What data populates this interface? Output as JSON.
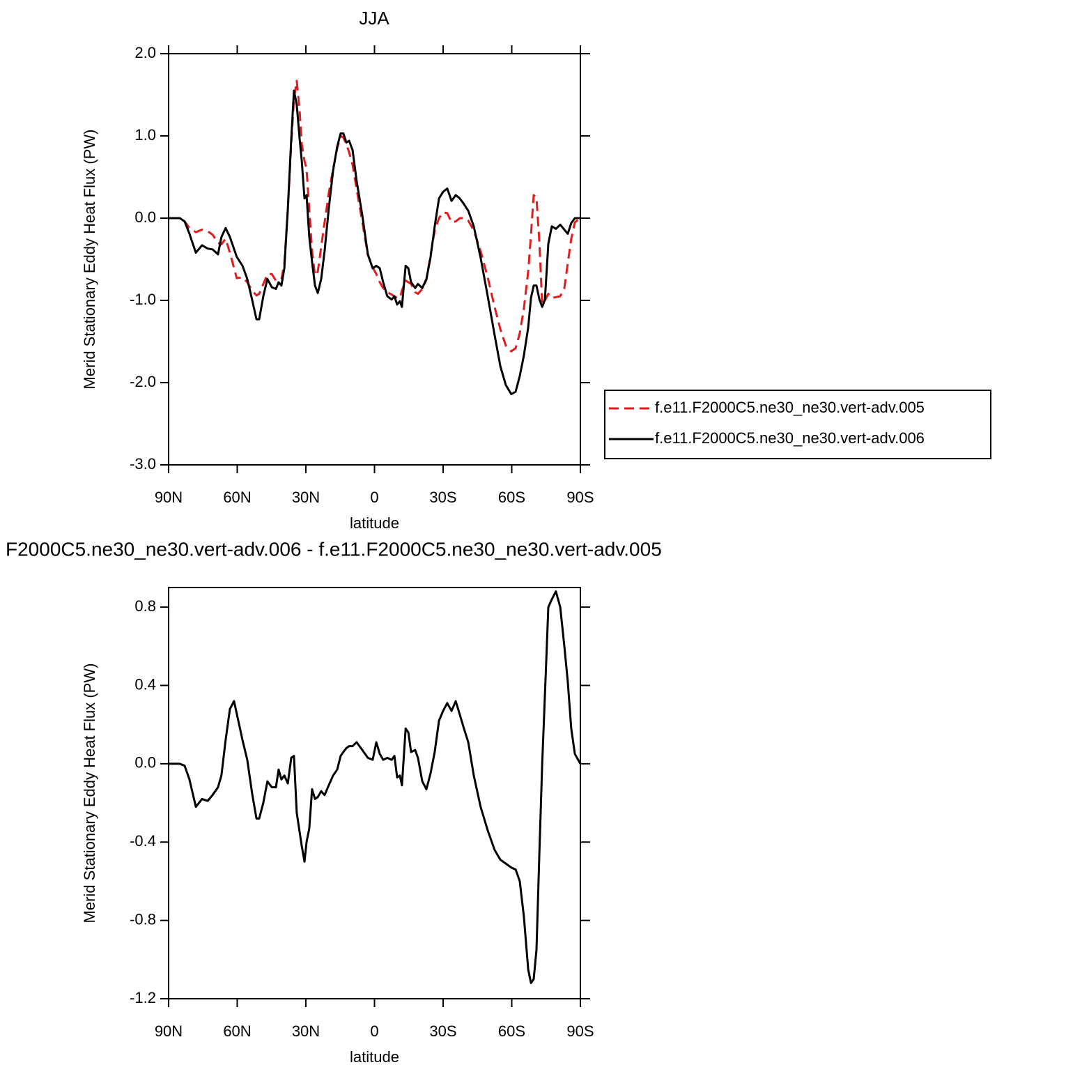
{
  "chart_data": [
    {
      "type": "line",
      "title": "JJA",
      "xlabel": "latitude",
      "ylabel": "Merid Stationary Eddy Heat Flux (PW)",
      "xlim": [
        90,
        -90
      ],
      "xticks": [
        {
          "value": 90,
          "label": "90N"
        },
        {
          "value": 60,
          "label": "60N"
        },
        {
          "value": 30,
          "label": "30N"
        },
        0,
        {
          "value": -30,
          "label": "30S"
        },
        {
          "value": -60,
          "label": "60S"
        },
        {
          "value": -90,
          "label": "90S"
        }
      ],
      "ylim": [
        -3,
        2
      ],
      "yticks": [
        {
          "value": 2,
          "label": "2.0"
        },
        {
          "value": 1,
          "label": "1.0"
        },
        {
          "value": 0,
          "label": "0.0"
        },
        {
          "value": -1,
          "label": "-1.0"
        },
        {
          "value": -2,
          "label": "-2.0"
        },
        {
          "value": -3,
          "label": "-3.0"
        }
      ],
      "x": [
        90,
        85.1,
        83.0,
        80.9,
        78.1,
        75.4,
        72.9,
        70.8,
        68.4,
        66.9,
        65.1,
        63.2,
        60.2,
        57.7,
        55.6,
        53.5,
        51.6,
        50.4,
        48.6,
        46.8,
        44.9,
        43.1,
        41.9,
        40.7,
        39.4,
        37.9,
        36.4,
        35.2,
        34.0,
        32.7,
        31.8,
        30.6,
        29.7,
        28.5,
        27.3,
        26.0,
        24.8,
        23.3,
        21.8,
        20.0,
        18.1,
        16.3,
        14.8,
        13.6,
        12.3,
        11.1,
        9.6,
        7.8,
        5.3,
        2.9,
        0.8,
        -0.8,
        -2.3,
        -3.8,
        -5.6,
        -7.5,
        -8.7,
        -9.9,
        -11.1,
        -12.0,
        -13.6,
        -14.8,
        -16.0,
        -17.8,
        -19.0,
        -20.9,
        -22.7,
        -24.5,
        -26.3,
        -28.2,
        -30.0,
        -31.8,
        -33.7,
        -35.5,
        -37.3,
        -39.1,
        -41.0,
        -43.4,
        -46.4,
        -49.5,
        -52.5,
        -55.0,
        -57.4,
        -59.8,
        -61.7,
        -63.5,
        -65.3,
        -67.2,
        -68.4,
        -69.6,
        -70.8,
        -72.1,
        -73.3,
        -74.5,
        -76.0,
        -77.5,
        -79.3,
        -81.2,
        -83.0,
        -84.5,
        -86.0,
        -87.6,
        -90
      ],
      "series": [
        {
          "name": "f.e11.F2000C5.ne30_ne30.vert-adv.005",
          "color": "#e41a1c",
          "dash": "dashed",
          "values": [
            0,
            0,
            -0.04,
            -0.12,
            -0.17,
            -0.14,
            -0.16,
            -0.2,
            -0.3,
            -0.32,
            -0.25,
            -0.42,
            -0.73,
            -0.72,
            -0.78,
            -0.88,
            -0.94,
            -0.92,
            -0.8,
            -0.68,
            -0.68,
            -0.76,
            -0.75,
            -0.74,
            -0.55,
            0.1,
            0.9,
            1.45,
            1.67,
            1.3,
            0.9,
            0.7,
            0.6,
            0.1,
            -0.4,
            -0.7,
            -0.65,
            -0.35,
            -0.05,
            0.3,
            0.6,
            0.85,
            1.0,
            0.98,
            0.9,
            0.8,
            0.65,
            0.35,
            -0.05,
            -0.45,
            -0.6,
            -0.68,
            -0.78,
            -0.85,
            -0.9,
            -0.93,
            -0.95,
            -0.97,
            -0.97,
            -0.88,
            -0.76,
            -0.78,
            -0.8,
            -0.9,
            -0.92,
            -0.86,
            -0.75,
            -0.45,
            -0.15,
            0.0,
            0.07,
            0.06,
            -0.05,
            -0.04,
            0.0,
            0.0,
            -0.03,
            -0.15,
            -0.4,
            -0.72,
            -1.08,
            -1.35,
            -1.55,
            -1.62,
            -1.58,
            -1.4,
            -1.1,
            -0.65,
            -0.2,
            0.28,
            0.25,
            -0.3,
            -1.05,
            -1.0,
            -0.92,
            -0.97,
            -0.96,
            -0.95,
            -0.85,
            -0.55,
            -0.25,
            -0.05,
            0
          ]
        },
        {
          "name": "f.e11.F2000C5.ne30_ne30.vert-adv.006",
          "color": "#000000",
          "dash": "solid",
          "values": [
            0,
            0,
            -0.04,
            -0.19,
            -0.42,
            -0.33,
            -0.37,
            -0.38,
            -0.44,
            -0.23,
            -0.12,
            -0.23,
            -0.47,
            -0.58,
            -0.74,
            -0.99,
            -1.23,
            -1.23,
            -0.95,
            -0.74,
            -0.84,
            -0.86,
            -0.78,
            -0.82,
            -0.61,
            0.11,
            0.96,
            1.55,
            1.38,
            0.96,
            0.7,
            0.24,
            0.28,
            -0.23,
            -0.53,
            -0.82,
            -0.91,
            -0.74,
            -0.4,
            0.11,
            0.58,
            0.87,
            1.03,
            1.03,
            0.92,
            0.94,
            0.83,
            0.45,
            0.03,
            -0.44,
            -0.61,
            -0.58,
            -0.61,
            -0.78,
            -0.95,
            -0.99,
            -0.95,
            -1.05,
            -1.01,
            -1.08,
            -0.58,
            -0.61,
            -0.78,
            -0.85,
            -0.8,
            -0.85,
            -0.74,
            -0.48,
            -0.1,
            0.24,
            0.32,
            0.36,
            0.21,
            0.28,
            0.24,
            0.17,
            0.09,
            -0.1,
            -0.48,
            -0.95,
            -1.42,
            -1.8,
            -2.03,
            -2.14,
            -2.11,
            -1.92,
            -1.67,
            -1.33,
            -0.97,
            -0.82,
            -0.82,
            -0.99,
            -1.08,
            -0.99,
            -0.31,
            -0.1,
            -0.13,
            -0.08,
            -0.14,
            -0.19,
            -0.06,
            0,
            0
          ]
        }
      ]
    },
    {
      "type": "line",
      "title": "F2000C5.ne30_ne30.vert-adv.006 - f.e11.F2000C5.ne30_ne30.vert-adv.005",
      "xlabel": "latitude",
      "ylabel": "Merid Stationary Eddy Heat Flux (PW)",
      "xlim": [
        90,
        -90
      ],
      "xticks": [
        {
          "value": 90,
          "label": "90N"
        },
        {
          "value": 60,
          "label": "60N"
        },
        {
          "value": 30,
          "label": "30N"
        },
        0,
        {
          "value": -30,
          "label": "30S"
        },
        {
          "value": -60,
          "label": "60S"
        },
        {
          "value": -90,
          "label": "90S"
        }
      ],
      "ylim": [
        -1.2,
        0.9
      ],
      "yticks": [
        0.8,
        0.4,
        {
          "value": 0,
          "label": "0.0"
        },
        -0.4,
        -0.8,
        -1.2
      ],
      "x": [
        90,
        85.1,
        83.0,
        80.9,
        78.1,
        75.4,
        72.9,
        70.8,
        68.4,
        66.9,
        65.1,
        63.2,
        61.4,
        57.7,
        55.6,
        53.5,
        51.6,
        50.4,
        48.6,
        46.8,
        44.9,
        43.1,
        41.9,
        40.7,
        39.4,
        37.9,
        36.4,
        35.2,
        34.0,
        32.7,
        31.8,
        30.6,
        29.7,
        28.5,
        27.3,
        26.0,
        24.8,
        23.3,
        21.8,
        20.0,
        18.1,
        16.3,
        14.8,
        13.6,
        12.3,
        11.1,
        9.6,
        7.8,
        5.3,
        2.9,
        0.8,
        -0.8,
        -2.3,
        -3.8,
        -5.6,
        -7.5,
        -8.7,
        -9.9,
        -11.1,
        -12.0,
        -13.6,
        -14.8,
        -16.0,
        -17.8,
        -19.0,
        -20.9,
        -22.7,
        -24.5,
        -26.3,
        -28.2,
        -30.0,
        -31.8,
        -33.7,
        -35.5,
        -37.3,
        -39.1,
        -41.0,
        -43.4,
        -46.4,
        -49.5,
        -52.5,
        -55.0,
        -57.4,
        -59.8,
        -61.7,
        -63.5,
        -65.3,
        -67.2,
        -68.4,
        -69.6,
        -70.8,
        -72.1,
        -73.3,
        -74.5,
        -76.0,
        -77.5,
        -79.3,
        -81.2,
        -83.0,
        -84.5,
        -86.0,
        -87.6,
        -90
      ],
      "color": "#000000",
      "values": [
        0,
        0,
        -0.01,
        -0.08,
        -0.22,
        -0.18,
        -0.19,
        -0.16,
        -0.12,
        -0.06,
        0.12,
        0.28,
        0.32,
        0.12,
        0.02,
        -0.15,
        -0.28,
        -0.28,
        -0.2,
        -0.09,
        -0.12,
        -0.12,
        -0.03,
        -0.08,
        -0.06,
        -0.1,
        0.03,
        0.04,
        -0.25,
        -0.35,
        -0.42,
        -0.5,
        -0.4,
        -0.33,
        -0.13,
        -0.18,
        -0.17,
        -0.14,
        -0.16,
        -0.11,
        -0.06,
        -0.03,
        0.04,
        0.06,
        0.08,
        0.09,
        0.09,
        0.11,
        0.07,
        0.03,
        0.02,
        0.11,
        0.05,
        0.02,
        0.03,
        0.02,
        0.04,
        -0.07,
        -0.06,
        -0.11,
        0.18,
        0.16,
        0.06,
        0.07,
        0.03,
        -0.09,
        -0.13,
        -0.05,
        0.06,
        0.22,
        0.27,
        0.31,
        0.27,
        0.32,
        0.25,
        0.18,
        0.11,
        -0.06,
        -0.22,
        -0.34,
        -0.44,
        -0.49,
        -0.51,
        -0.53,
        -0.54,
        -0.6,
        -0.78,
        -1.05,
        -1.12,
        -1.1,
        -0.95,
        -0.45,
        0.0,
        0.35,
        0.8,
        0.84,
        0.88,
        0.8,
        0.6,
        0.42,
        0.18,
        0.05,
        0
      ]
    }
  ]
}
